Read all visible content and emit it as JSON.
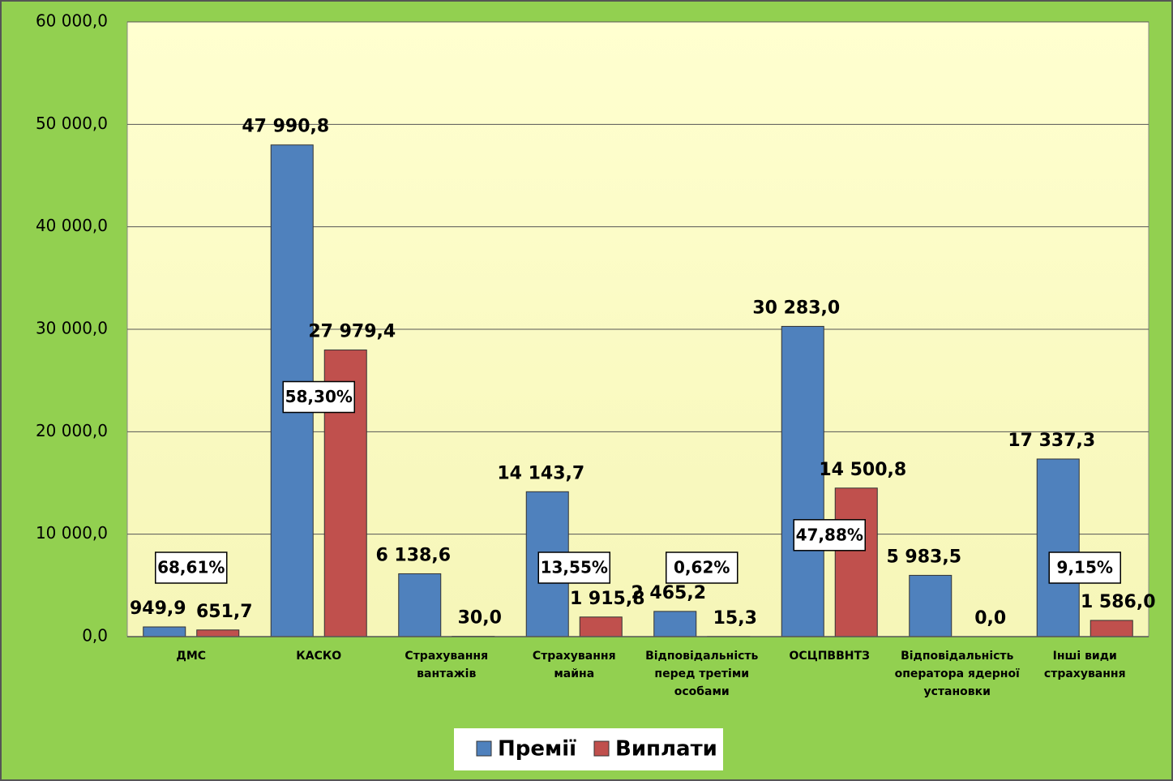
{
  "chart_data": {
    "type": "bar",
    "categories": [
      [
        "ДМС"
      ],
      [
        "КАСКО"
      ],
      [
        "Страхування",
        "вантажів"
      ],
      [
        "Страхування",
        "майна"
      ],
      [
        "Відповідальність",
        "перед третіми",
        "особами"
      ],
      [
        "ОСЦПВВНТЗ"
      ],
      [
        "Відповідальність",
        "оператора ядерної",
        "установки"
      ],
      [
        "Інші види",
        "страхування"
      ]
    ],
    "series": [
      {
        "name": "Премії",
        "color": "#4f81bd",
        "values": [
          949.9,
          47990.8,
          6138.6,
          14143.7,
          2465.2,
          30283.0,
          5983.5,
          17337.3
        ],
        "value_labels": [
          "949,9",
          "47 990,8",
          "6 138,6",
          "14 143,7",
          "2 465,2",
          "30 283,0",
          "5 983,5",
          "17 337,3"
        ]
      },
      {
        "name": "Виплати",
        "color": "#c0504d",
        "values": [
          651.7,
          27979.4,
          30.0,
          1915.8,
          15.3,
          14500.8,
          0.0,
          1586.0
        ],
        "value_labels": [
          "651,7",
          "27 979,4",
          "30,0",
          "1 915,8",
          "15,3",
          "14 500,8",
          "0,0",
          "1 586,0"
        ]
      }
    ],
    "ratios": [
      68.61,
      58.3,
      null,
      13.55,
      0.62,
      47.88,
      null,
      9.15
    ],
    "ratio_labels": [
      "68,61%",
      "58,30%",
      null,
      "13,55%",
      "0,62%",
      "47,88%",
      null,
      "9,15%"
    ],
    "ylim": [
      0,
      60000
    ],
    "yticks": [
      {
        "value": 0,
        "label": "0,0"
      },
      {
        "value": 10000,
        "label": "10 000,0"
      },
      {
        "value": 20000,
        "label": "20 000,0"
      },
      {
        "value": 30000,
        "label": "30 000,0"
      },
      {
        "value": 40000,
        "label": "40 000,0"
      },
      {
        "value": 50000,
        "label": "50 000,0"
      },
      {
        "value": 60000,
        "label": "60 000,0"
      }
    ],
    "grid": true,
    "legend": "bottom"
  }
}
